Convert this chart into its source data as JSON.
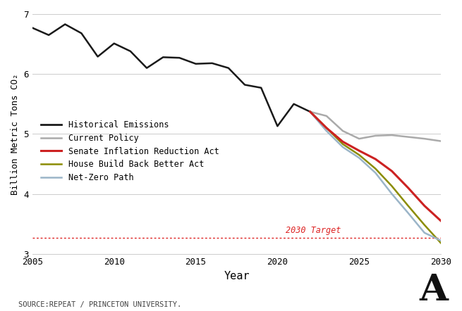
{
  "title": "",
  "ylabel": "Billion Metric Tons CO₂",
  "xlabel": "Year",
  "source_text": "SOURCE:REPEAT / PRINCETON UNIVERSITY.",
  "watermark": "A",
  "xlim": [
    2005,
    2030
  ],
  "ylim": [
    3,
    7
  ],
  "yticks": [
    3,
    4,
    5,
    6,
    7
  ],
  "xticks": [
    2005,
    2010,
    2015,
    2020,
    2025,
    2030
  ],
  "target_line_y": 3.27,
  "target_label": "2030 Target",
  "background_color": "#ffffff",
  "grid_color": "#cccccc",
  "historical": {
    "x": [
      2005,
      2006,
      2007,
      2008,
      2009,
      2010,
      2011,
      2012,
      2013,
      2014,
      2015,
      2016,
      2017,
      2018,
      2019,
      2020,
      2021,
      2022
    ],
    "y": [
      6.77,
      6.65,
      6.83,
      6.68,
      6.29,
      6.51,
      6.38,
      6.1,
      6.28,
      6.27,
      6.17,
      6.18,
      6.1,
      5.82,
      5.77,
      5.13,
      5.5,
      5.37
    ],
    "color": "#1a1a1a",
    "linewidth": 1.8,
    "label": "Historical Emissions"
  },
  "current_policy": {
    "x": [
      2022,
      2023,
      2024,
      2025,
      2026,
      2027,
      2028,
      2029,
      2030
    ],
    "y": [
      5.37,
      5.3,
      5.05,
      4.92,
      4.97,
      4.98,
      4.95,
      4.92,
      4.88
    ],
    "color": "#aaaaaa",
    "linewidth": 1.8,
    "label": "Current Policy"
  },
  "senate_ira": {
    "x": [
      2022,
      2023,
      2024,
      2025,
      2026,
      2027,
      2028,
      2029,
      2030
    ],
    "y": [
      5.37,
      5.1,
      4.87,
      4.72,
      4.58,
      4.38,
      4.1,
      3.8,
      3.55
    ],
    "color": "#cc2222",
    "linewidth": 2.2,
    "label": "Senate Inflation Reduction Act"
  },
  "house_bbba": {
    "x": [
      2022,
      2023,
      2024,
      2025,
      2026,
      2027,
      2028,
      2029,
      2030
    ],
    "y": [
      5.37,
      5.1,
      4.83,
      4.65,
      4.42,
      4.13,
      3.8,
      3.48,
      3.18
    ],
    "color": "#8b8c00",
    "linewidth": 1.8,
    "label": "House Build Back Better Act"
  },
  "net_zero": {
    "x": [
      2022,
      2023,
      2024,
      2025,
      2026,
      2027,
      2028,
      2029,
      2030
    ],
    "y": [
      5.37,
      5.05,
      4.78,
      4.6,
      4.35,
      4.0,
      3.68,
      3.35,
      3.22
    ],
    "color": "#9bb5c8",
    "linewidth": 1.8,
    "label": "Net-Zero Path"
  }
}
